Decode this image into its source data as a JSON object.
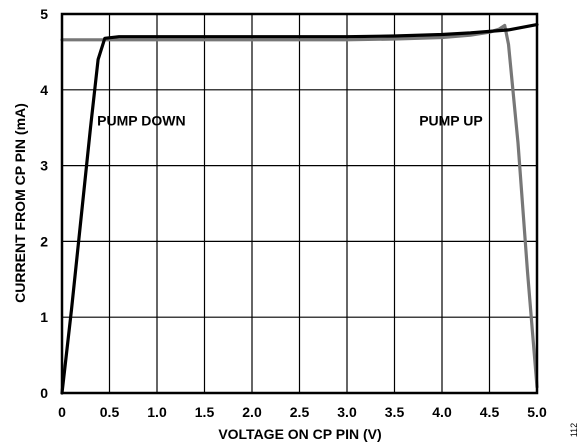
{
  "chart_data": {
    "type": "line",
    "xlabel": "VOLTAGE ON CP PIN (V)",
    "ylabel": "CURRENT FROM CP PIN (mA)",
    "xlim": [
      0,
      5.0
    ],
    "ylim": [
      0,
      5
    ],
    "x_ticks": [
      "0",
      "0.5",
      "1.0",
      "1.5",
      "2.0",
      "2.5",
      "3.0",
      "3.5",
      "4.0",
      "4.5",
      "5.0"
    ],
    "y_ticks": [
      "0",
      "1",
      "2",
      "3",
      "4",
      "5"
    ],
    "grid": true,
    "series": [
      {
        "name": "PUMP DOWN",
        "color": "#000000",
        "x": [
          0,
          0.1,
          0.2,
          0.3,
          0.38,
          0.45,
          0.6,
          1.0,
          2.0,
          3.0,
          3.5,
          4.0,
          4.3,
          4.5,
          4.7,
          5.0
        ],
        "y": [
          0,
          1.1,
          2.3,
          3.5,
          4.4,
          4.68,
          4.7,
          4.7,
          4.7,
          4.7,
          4.71,
          4.73,
          4.75,
          4.77,
          4.79,
          4.86
        ]
      },
      {
        "name": "PUMP UP",
        "color": "#777777",
        "x": [
          0,
          0.5,
          1.0,
          2.0,
          3.0,
          3.5,
          4.0,
          4.3,
          4.5,
          4.6,
          4.66,
          4.7,
          4.8,
          4.9,
          5.0
        ],
        "y": [
          4.66,
          4.66,
          4.66,
          4.66,
          4.66,
          4.67,
          4.69,
          4.72,
          4.76,
          4.8,
          4.85,
          4.6,
          3.3,
          1.6,
          0.08
        ]
      }
    ],
    "annotations": [
      {
        "text": "PUMP DOWN",
        "x": 0.37,
        "y": 3.53
      },
      {
        "text": "PUMP UP",
        "x": 3.76,
        "y": 3.53
      }
    ],
    "figure_id": "112"
  }
}
